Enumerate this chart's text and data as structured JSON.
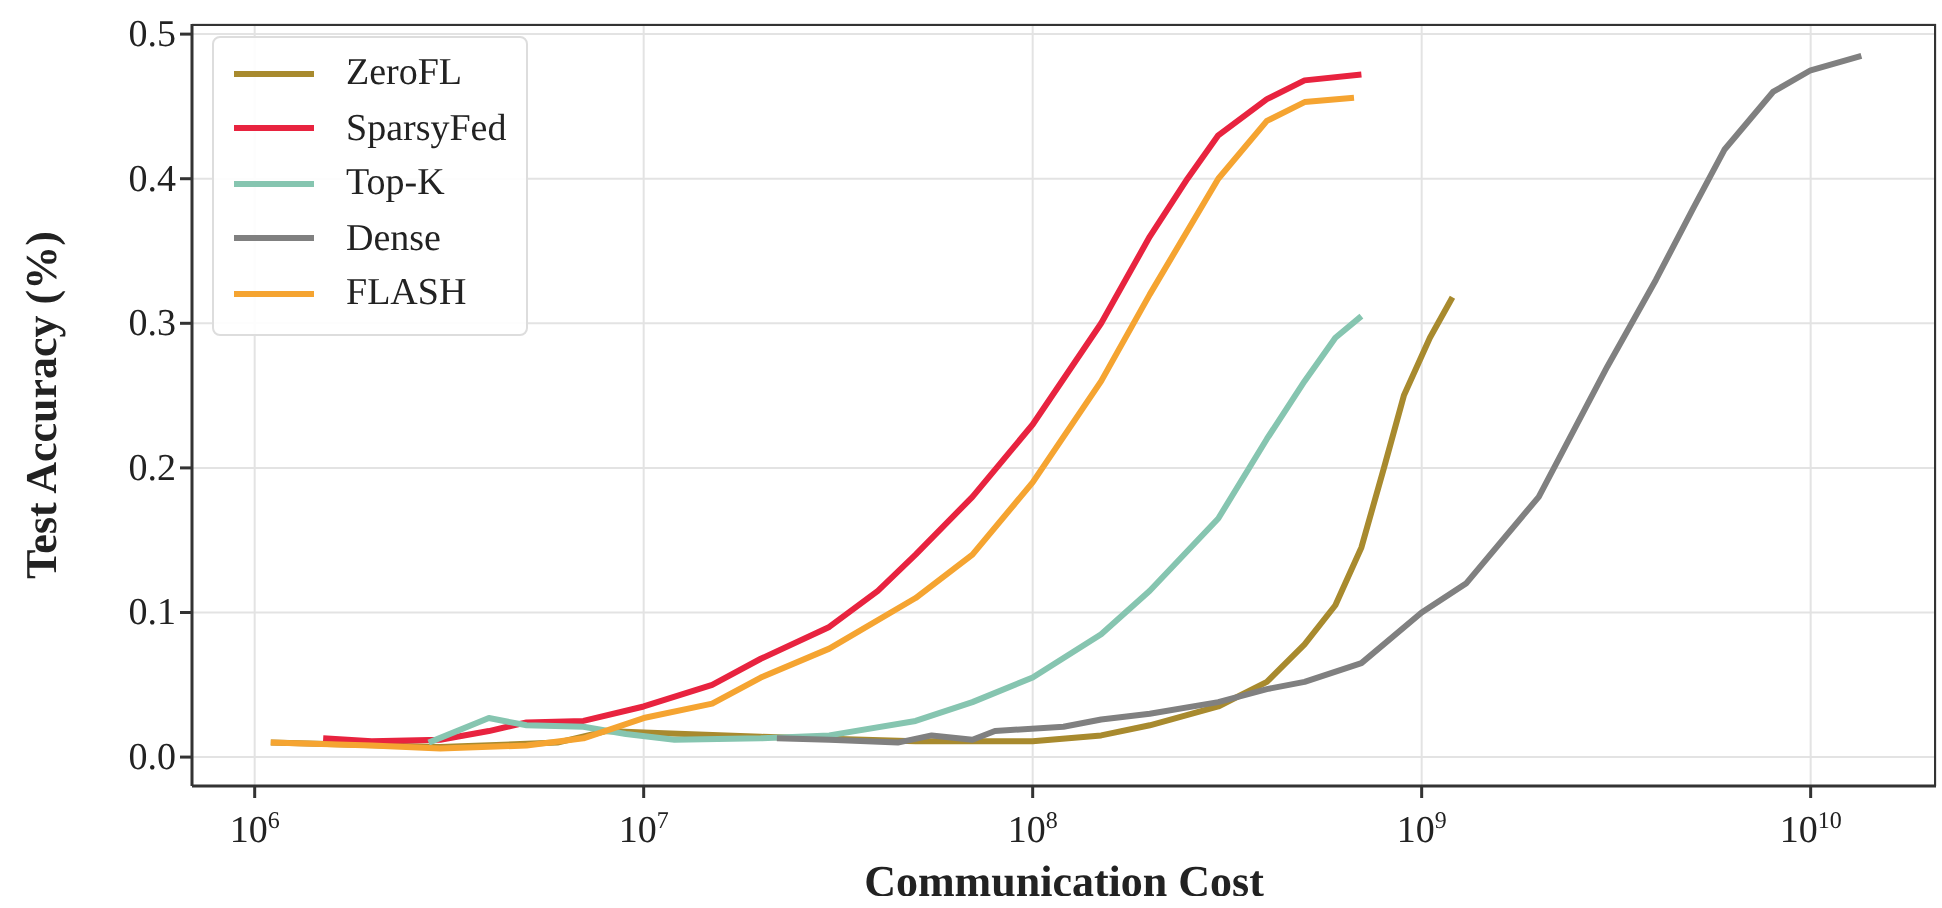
{
  "chart_data": {
    "type": "line",
    "xlabel": "Communication Cost",
    "ylabel": "Test Accuracy (%)",
    "log": "x",
    "xlim": [
      690000,
      21000000000
    ],
    "xticks": [
      {
        "value": 1000000,
        "label": "10$^{6}$"
      },
      {
        "value": 10000000,
        "label": "10$^{7}$"
      },
      {
        "value": 100000000,
        "label": "10$^{8}$"
      },
      {
        "value": 1000000000,
        "label": "10$^{9}$"
      },
      {
        "value": 10000000000,
        "label": "10$^{10}$"
      }
    ],
    "ylim": [
      -0.02,
      0.507
    ],
    "yticks": [
      {
        "value": 0,
        "label": "0.0"
      },
      0.1,
      0.2,
      0.3,
      0.4,
      0.5
    ],
    "grid": true,
    "legend": "top left",
    "marker": "none",
    "line_style": "solid",
    "series": [
      {
        "name": "ZeroFL",
        "color": "#a88a2e",
        "x": [
          1100000,
          3000000,
          6000000,
          8000000,
          10000000,
          20000000,
          50000000,
          100000000,
          150000000,
          200000000,
          300000000,
          400000000,
          500000000,
          600000000,
          700000000,
          800000000,
          900000000,
          1050000000,
          1200000000
        ],
        "values": [
          0.01,
          0.007,
          0.01,
          0.018,
          0.017,
          0.014,
          0.011,
          0.011,
          0.015,
          0.022,
          0.035,
          0.052,
          0.078,
          0.105,
          0.145,
          0.2,
          0.25,
          0.29,
          0.318
        ]
      },
      {
        "name": "SparsyFed",
        "color": "#e8233f",
        "x": [
          1500000,
          2000000,
          3000000,
          4000000,
          5000000,
          7000000,
          10000000,
          15000000,
          20000000,
          30000000,
          40000000,
          50000000,
          70000000,
          100000000,
          150000000,
          200000000,
          250000000,
          300000000,
          400000000,
          500000000,
          700000000
        ],
        "values": [
          0.013,
          0.011,
          0.012,
          0.018,
          0.024,
          0.025,
          0.035,
          0.05,
          0.068,
          0.09,
          0.115,
          0.14,
          0.18,
          0.23,
          0.3,
          0.36,
          0.4,
          0.43,
          0.455,
          0.468,
          0.472
        ]
      },
      {
        "name": "Top-K",
        "color": "#86c5b0",
        "x": [
          2800000,
          4000000,
          5000000,
          7000000,
          9000000,
          12000000,
          20000000,
          30000000,
          50000000,
          70000000,
          100000000,
          150000000,
          200000000,
          300000000,
          400000000,
          500000000,
          600000000,
          700000000
        ],
        "values": [
          0.01,
          0.027,
          0.022,
          0.021,
          0.016,
          0.012,
          0.013,
          0.015,
          0.025,
          0.038,
          0.055,
          0.085,
          0.115,
          0.165,
          0.22,
          0.26,
          0.29,
          0.305
        ]
      },
      {
        "name": "Dense",
        "color": "#808080",
        "x": [
          22000000,
          30000000,
          45000000,
          55000000,
          70000000,
          80000000,
          120000000,
          150000000,
          200000000,
          300000000,
          400000000,
          500000000,
          700000000,
          1000000000,
          1300000000,
          2000000000,
          3000000000,
          4000000000,
          5000000000,
          6000000000,
          8000000000,
          10000000000,
          13500000000
        ],
        "values": [
          0.013,
          0.012,
          0.01,
          0.015,
          0.012,
          0.018,
          0.021,
          0.026,
          0.03,
          0.038,
          0.047,
          0.052,
          0.065,
          0.1,
          0.12,
          0.18,
          0.27,
          0.33,
          0.38,
          0.42,
          0.46,
          0.475,
          0.485
        ]
      },
      {
        "name": "FLASH",
        "color": "#f5a431",
        "x": [
          1100000,
          2000000,
          3000000,
          5000000,
          7000000,
          10000000,
          15000000,
          20000000,
          30000000,
          50000000,
          70000000,
          100000000,
          150000000,
          200000000,
          300000000,
          400000000,
          500000000,
          670000000
        ],
        "values": [
          0.01,
          0.008,
          0.006,
          0.008,
          0.013,
          0.027,
          0.037,
          0.055,
          0.075,
          0.11,
          0.14,
          0.19,
          0.26,
          0.32,
          0.4,
          0.44,
          0.453,
          0.456
        ]
      }
    ]
  }
}
